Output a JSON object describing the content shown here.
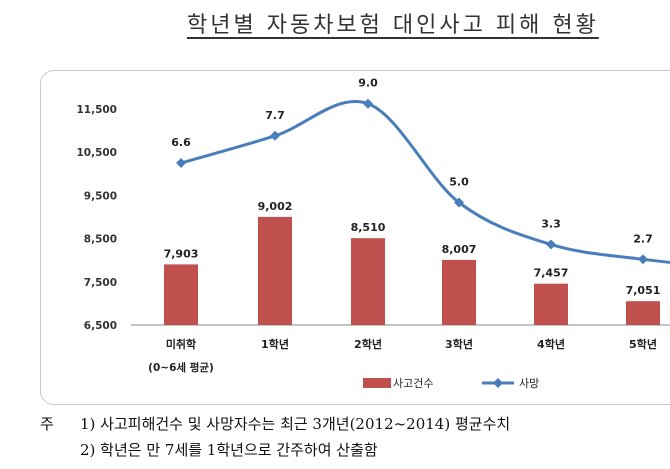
{
  "title": "학년별 자동차보험 대인사고 피해 현황",
  "notes": {
    "prefix": "주",
    "line1": "1) 사고피해건수 및 사망자수는 최근 3개년(2012~2014) 평균수치",
    "line2": "2) 학년은 만 7세를 1학년으로 간주하여 산출함"
  },
  "chart_data": {
    "type": "bar",
    "categories": [
      "미취학",
      "1학년",
      "2학년",
      "3학년",
      "4학년",
      "5학년"
    ],
    "category_sublabels": [
      "(0~6세 평균)",
      "",
      "",
      "",
      "",
      ""
    ],
    "ylim": [
      6500,
      11500
    ],
    "yticks": [
      6500,
      7500,
      8500,
      9500,
      10500,
      11500
    ],
    "ytick_labels": [
      "6,500",
      "7,500",
      "8,500",
      "9,500",
      "10,500",
      "11,500"
    ],
    "series": [
      {
        "name": "사고건수",
        "kind": "bar",
        "color": "#c0504d",
        "values": [
          7903,
          9002,
          8510,
          8007,
          7457,
          7051
        ],
        "labels": [
          "7,903",
          "9,002",
          "8,510",
          "8,007",
          "7,457",
          "7,051"
        ]
      },
      {
        "name": "사망",
        "kind": "line",
        "color": "#4a7ebb",
        "values": [
          6.6,
          7.7,
          9.0,
          5.0,
          3.3,
          2.7
        ],
        "labels": [
          "6.6",
          "7.7",
          "9.0",
          "5.0",
          "3.3",
          "2.7"
        ]
      }
    ],
    "legend_position": "bottom"
  }
}
